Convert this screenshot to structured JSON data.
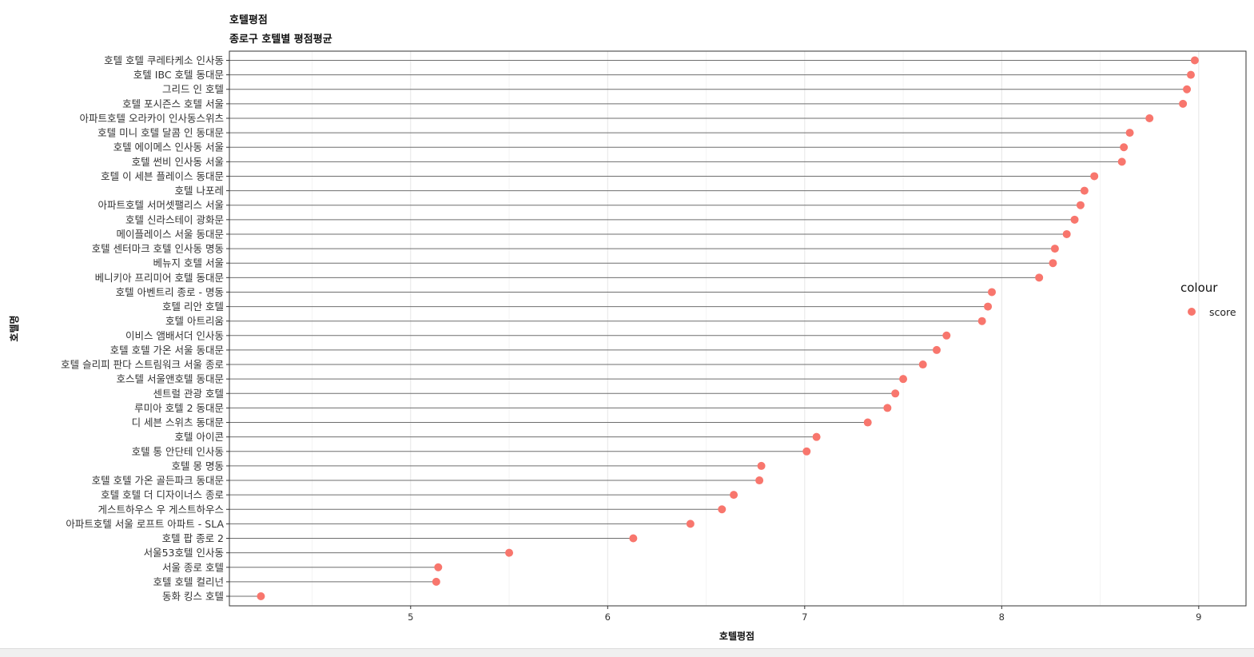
{
  "chart_data": {
    "type": "scatter",
    "title": "호텔평점",
    "subtitle": "종로구 호텔별 평점평균",
    "xlabel": "호텔평점",
    "ylabel": "호텔명",
    "xlim": [
      4.08,
      9.24
    ],
    "xticks": [
      5,
      6,
      7,
      8,
      9
    ],
    "grid": true,
    "legend": {
      "title": "colour",
      "position": "right",
      "entries": [
        "score"
      ]
    },
    "point_color": "#F8766D",
    "segment_color": "#6e6e6e",
    "series": [
      {
        "name": "score",
        "points": [
          {
            "label": "호텔 호텔 쿠레타케소 인사동",
            "value": 8.98
          },
          {
            "label": "호텔 IBC 호텔 동대문",
            "value": 8.96
          },
          {
            "label": "그리드 인 호텔",
            "value": 8.94
          },
          {
            "label": "호텔 포시즌스 호텔 서울",
            "value": 8.92
          },
          {
            "label": "아파트호텔 오라카이 인사동스위츠",
            "value": 8.75
          },
          {
            "label": "호텔 미니 호텔 달콤 인 동대문",
            "value": 8.65
          },
          {
            "label": "호텔 에이메스 인사동 서울",
            "value": 8.62
          },
          {
            "label": "호텔 썬비 인사동 서울",
            "value": 8.61
          },
          {
            "label": "호텔 이 세븐 플레이스 동대문",
            "value": 8.47
          },
          {
            "label": "호텔 나포레",
            "value": 8.42
          },
          {
            "label": "아파트호텔 서머셋팰리스 서울",
            "value": 8.4
          },
          {
            "label": "호텔 신라스테이 광화문",
            "value": 8.37
          },
          {
            "label": "메이플레이스 서울 동대문",
            "value": 8.33
          },
          {
            "label": "호텔 센터마크 호텔 인사동 명동",
            "value": 8.27
          },
          {
            "label": "베뉴지 호텔 서울",
            "value": 8.26
          },
          {
            "label": "베니키아 프리미어 호텔 동대문",
            "value": 8.19
          },
          {
            "label": "호텔 아벤트리 종로 - 명동",
            "value": 7.95
          },
          {
            "label": "호텔 리안 호텔",
            "value": 7.93
          },
          {
            "label": "호텔 아트리움",
            "value": 7.9
          },
          {
            "label": "이비스 앰배서더 인사동",
            "value": 7.72
          },
          {
            "label": "호텔 호텔 가온 서울 동대문",
            "value": 7.67
          },
          {
            "label": "호텔 슬리피 판다 스트림워크 서울 종로",
            "value": 7.6
          },
          {
            "label": "호스텔 서울앤호텔 동대문",
            "value": 7.5
          },
          {
            "label": "센트럴 관광 호텔",
            "value": 7.46
          },
          {
            "label": "루미아 호텔 2 동대문",
            "value": 7.42
          },
          {
            "label": "디 세븐 스위츠 동대문",
            "value": 7.32
          },
          {
            "label": "호텔 아이콘",
            "value": 7.06
          },
          {
            "label": "호텔 통 안단테 인사동",
            "value": 7.01
          },
          {
            "label": "호텔 몽 명동",
            "value": 6.78
          },
          {
            "label": "호텔 호텔 가온 골든파크 동대문",
            "value": 6.77
          },
          {
            "label": "호텔 호텔 더 디자이너스 종로",
            "value": 6.64
          },
          {
            "label": "게스트하우스 우 게스트하우스",
            "value": 6.58
          },
          {
            "label": "아파트호텔 서울 로프트 아파트 - SLA",
            "value": 6.42
          },
          {
            "label": "호텔 팝 종로 2",
            "value": 6.13
          },
          {
            "label": "서울53호텔 인사동",
            "value": 5.5
          },
          {
            "label": "서울 종로 호텔",
            "value": 5.14
          },
          {
            "label": "호텔 호텔 컬리넌",
            "value": 5.13
          },
          {
            "label": "동화 킹스 호텔",
            "value": 4.24
          }
        ]
      }
    ]
  }
}
